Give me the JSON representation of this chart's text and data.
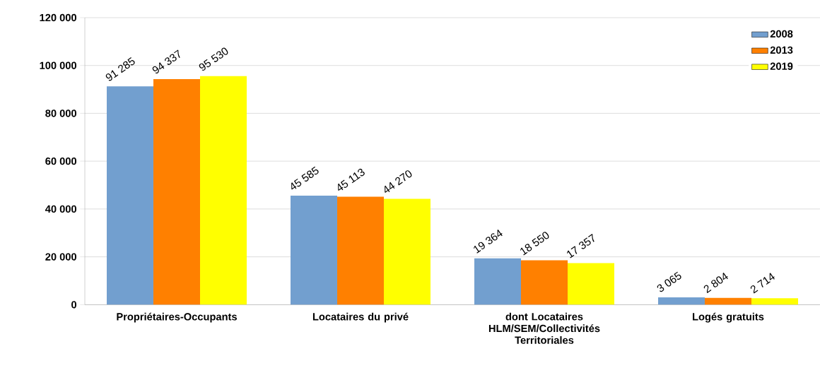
{
  "chart_data": {
    "type": "bar",
    "categories": [
      "Propriétaires-Occupants",
      "Locataires du privé",
      "dont Locataires HLM/SEM/Collectivités Territoriales",
      "Logés gratuits"
    ],
    "series": [
      {
        "name": "2008",
        "color": "#729fcf",
        "values": [
          91285,
          45585,
          19364,
          3065
        ],
        "value_labels": [
          "91 285",
          "45 585",
          "19 364",
          "3 065"
        ]
      },
      {
        "name": "2013",
        "color": "#ff8000",
        "values": [
          94337,
          45113,
          18550,
          2804
        ],
        "value_labels": [
          "94 337",
          "45 113",
          "18 550",
          "2 804"
        ]
      },
      {
        "name": "2019",
        "color": "#ffff00",
        "values": [
          95530,
          44270,
          17357,
          2714
        ],
        "value_labels": [
          "95 530",
          "44 270",
          "17 357",
          "2 714"
        ]
      }
    ],
    "ylim": [
      0,
      120000
    ],
    "yticks": [
      0,
      {
        "value": 20000,
        "label": "20 000"
      },
      {
        "value": 40000,
        "label": "40 000"
      },
      {
        "value": 60000,
        "label": "60 000"
      },
      {
        "value": 80000,
        "label": "80 000"
      },
      {
        "value": 100000,
        "label": "100 000"
      },
      {
        "value": 120000,
        "label": "120 000"
      }
    ],
    "grid": "y",
    "legend": "top right"
  }
}
